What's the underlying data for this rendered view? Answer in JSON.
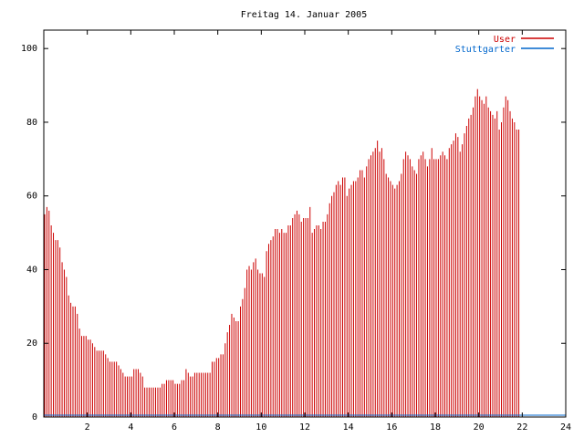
{
  "chart_data": {
    "type": "bar",
    "title": "Freitag 14. Januar 2005",
    "xlabel": "",
    "ylabel": "",
    "xlim": [
      0,
      24
    ],
    "ylim": [
      0,
      105
    ],
    "xticks": [
      2,
      4,
      6,
      8,
      10,
      12,
      14,
      16,
      18,
      20,
      22,
      24
    ],
    "yticks": [
      0,
      20,
      40,
      60,
      80,
      100
    ],
    "legend_position": "top-right",
    "bar_color": "#cc0000",
    "line_color": "#0066cc",
    "series": [
      {
        "name": "User",
        "color": "#cc0000",
        "x_start": 0,
        "x_step": 0.1,
        "values": [
          55,
          57,
          56,
          52,
          50,
          48,
          48,
          46,
          42,
          40,
          38,
          33,
          31,
          30,
          30,
          28,
          24,
          22,
          22,
          22,
          21,
          21,
          20,
          19,
          18,
          18,
          18,
          18,
          17,
          16,
          15,
          15,
          15,
          15,
          14,
          13,
          12,
          11,
          11,
          11,
          11,
          13,
          13,
          13,
          12,
          11,
          8,
          8,
          8,
          8,
          8,
          8,
          8,
          8,
          9,
          9,
          10,
          10,
          10,
          10,
          9,
          9,
          9,
          10,
          10,
          13,
          12,
          11,
          11,
          12,
          12,
          12,
          12,
          12,
          12,
          12,
          12,
          15,
          15,
          16,
          16,
          17,
          17,
          20,
          23,
          25,
          28,
          27,
          26,
          26,
          30,
          32,
          35,
          40,
          41,
          40,
          42,
          43,
          40,
          39,
          39,
          38,
          45,
          47,
          48,
          49,
          51,
          51,
          50,
          51,
          50,
          50,
          52,
          52,
          54,
          55,
          56,
          55,
          53,
          54,
          54,
          54,
          57,
          50,
          51,
          52,
          52,
          51,
          53,
          53,
          55,
          58,
          60,
          61,
          63,
          64,
          63,
          65,
          65,
          60,
          62,
          63,
          64,
          64,
          65,
          67,
          67,
          65,
          68,
          70,
          71,
          72,
          73,
          75,
          72,
          73,
          70,
          66,
          65,
          64,
          63,
          62,
          63,
          64,
          66,
          70,
          72,
          71,
          70,
          68,
          67,
          66,
          70,
          71,
          72,
          70,
          68,
          70,
          73,
          70,
          70,
          70,
          71,
          72,
          71,
          70,
          73,
          74,
          75,
          77,
          76,
          72,
          74,
          77,
          79,
          81,
          82,
          84,
          87,
          89,
          87,
          86,
          85,
          87,
          84,
          83,
          82,
          81,
          83,
          78,
          80,
          84,
          87,
          86,
          83,
          81,
          80,
          78,
          78
        ]
      },
      {
        "name": "Stuttgarter",
        "color": "#0066cc",
        "x": [
          0,
          24
        ],
        "values": [
          0.5,
          0.5
        ]
      }
    ]
  }
}
